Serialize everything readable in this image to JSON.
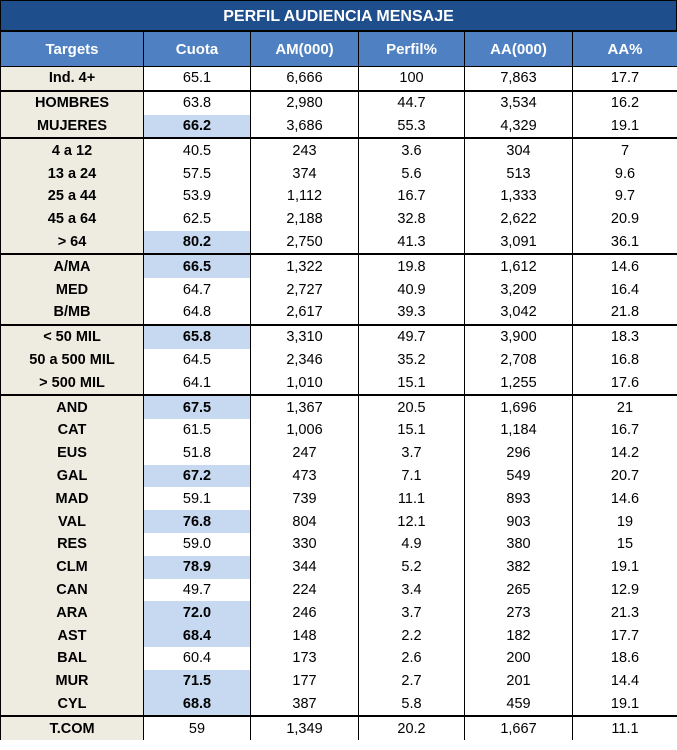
{
  "title": "PERFIL AUDIENCIA MENSAJE",
  "table": {
    "header": [
      "Targets",
      "Cuota",
      "AM(000)",
      "Perfil%",
      "AA(000)",
      "AA%"
    ],
    "rows": [
      [
        "Ind. 4+",
        "65.1",
        "6,666",
        "100",
        "7,863",
        "17.7"
      ],
      [
        "HOMBRES",
        "63.8",
        "2,980",
        "44.7",
        "3,534",
        "16.2"
      ],
      [
        "MUJERES",
        "66.2",
        "3,686",
        "55.3",
        "4,329",
        "19.1"
      ],
      [
        "4 a 12",
        "40.5",
        "243",
        "3.6",
        "304",
        "7"
      ],
      [
        "13 a 24",
        "57.5",
        "374",
        "5.6",
        "513",
        "9.6"
      ],
      [
        "25 a 44",
        "53.9",
        "1,112",
        "16.7",
        "1,333",
        "9.7"
      ],
      [
        "45 a 64",
        "62.5",
        "2,188",
        "32.8",
        "2,622",
        "20.9"
      ],
      [
        "> 64",
        "80.2",
        "2,750",
        "41.3",
        "3,091",
        "36.1"
      ],
      [
        "A/MA",
        "66.5",
        "1,322",
        "19.8",
        "1,612",
        "14.6"
      ],
      [
        "MED",
        "64.7",
        "2,727",
        "40.9",
        "3,209",
        "16.4"
      ],
      [
        "B/MB",
        "64.8",
        "2,617",
        "39.3",
        "3,042",
        "21.8"
      ],
      [
        "< 50 MIL",
        "65.8",
        "3,310",
        "49.7",
        "3,900",
        "18.3"
      ],
      [
        "50 a 500 MIL",
        "64.5",
        "2,346",
        "35.2",
        "2,708",
        "16.8"
      ],
      [
        "> 500 MIL",
        "64.1",
        "1,010",
        "15.1",
        "1,255",
        "17.6"
      ],
      [
        "AND",
        "67.5",
        "1,367",
        "20.5",
        "1,696",
        "21"
      ],
      [
        "CAT",
        "61.5",
        "1,006",
        "15.1",
        "1,184",
        "16.7"
      ],
      [
        "EUS",
        "51.8",
        "247",
        "3.7",
        "296",
        "14.2"
      ],
      [
        "GAL",
        "67.2",
        "473",
        "7.1",
        "549",
        "20.7"
      ],
      [
        "MAD",
        "59.1",
        "739",
        "11.1",
        "893",
        "14.6"
      ],
      [
        "VAL",
        "76.8",
        "804",
        "12.1",
        "903",
        "19"
      ],
      [
        "RES",
        "59.0",
        "330",
        "4.9",
        "380",
        "15"
      ],
      [
        "CLM",
        "78.9",
        "344",
        "5.2",
        "382",
        "19.1"
      ],
      [
        "CAN",
        "49.7",
        "224",
        "3.4",
        "265",
        "12.9"
      ],
      [
        "ARA",
        "72.0",
        "246",
        "3.7",
        "273",
        "21.3"
      ],
      [
        "AST",
        "68.4",
        "148",
        "2.2",
        "182",
        "17.7"
      ],
      [
        "BAL",
        "60.4",
        "173",
        "2.6",
        "200",
        "18.6"
      ],
      [
        "MUR",
        "71.5",
        "177",
        "2.7",
        "201",
        "14.4"
      ],
      [
        "CYL",
        "68.8",
        "387",
        "5.8",
        "459",
        "19.1"
      ],
      [
        "T.COM",
        "59",
        "1,349",
        "20.2",
        "1,667",
        "11.1"
      ]
    ]
  }
}
